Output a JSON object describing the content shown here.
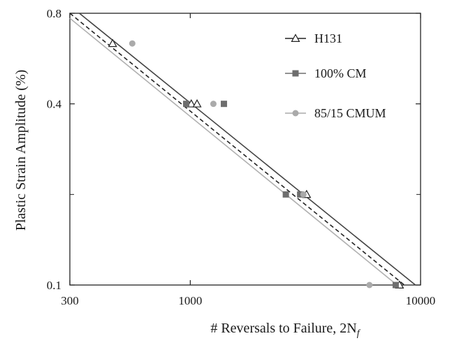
{
  "chart_data": {
    "type": "scatter",
    "title": "",
    "xlabel": "# Reversals to Failure, 2N",
    "xlabel_subscript": "f",
    "ylabel": "Plastic Strain Amplitude (%)",
    "xscale": "log",
    "yscale": "log",
    "xlim": [
      300,
      10000
    ],
    "ylim": [
      0.1,
      0.8
    ],
    "xticks": [
      300,
      1000,
      10000
    ],
    "xtick_labels": [
      "300",
      "1000",
      "10000"
    ],
    "yticks": [
      0.1,
      0.4,
      0.8
    ],
    "ytick_labels": [
      "0.1",
      "0.4",
      "0.8"
    ],
    "grid": false,
    "legend_position": "top-right",
    "series": [
      {
        "name": "H131",
        "marker": "triangle-open",
        "color": "#222222",
        "points": [
          [
            460,
            0.635
          ],
          [
            1010,
            0.4
          ],
          [
            1070,
            0.4
          ],
          [
            3200,
            0.2
          ],
          [
            8100,
            0.1
          ]
        ],
        "fit": {
          "x": [
            330,
            9500
          ],
          "y": [
            0.8,
            0.1
          ],
          "style": "solid"
        }
      },
      {
        "name": "100% CM",
        "marker": "square",
        "color": "#6e6e6e",
        "points": [
          [
            960,
            0.4
          ],
          [
            1400,
            0.4
          ],
          [
            2600,
            0.2
          ],
          [
            3000,
            0.2
          ],
          [
            7800,
            0.1
          ]
        ],
        "fit": {
          "x": [
            300,
            8500
          ],
          "y": [
            0.8,
            0.1
          ],
          "style": "dashed"
        }
      },
      {
        "name": "85/15 CMUM",
        "marker": "circle",
        "color": "#aaaaaa",
        "points": [
          [
            560,
            0.635
          ],
          [
            1260,
            0.4
          ],
          [
            3100,
            0.2
          ],
          [
            6000,
            0.1
          ]
        ],
        "fit": {
          "x": [
            300,
            7900
          ],
          "y": [
            0.77,
            0.1
          ],
          "style": "solid-light"
        }
      }
    ]
  }
}
